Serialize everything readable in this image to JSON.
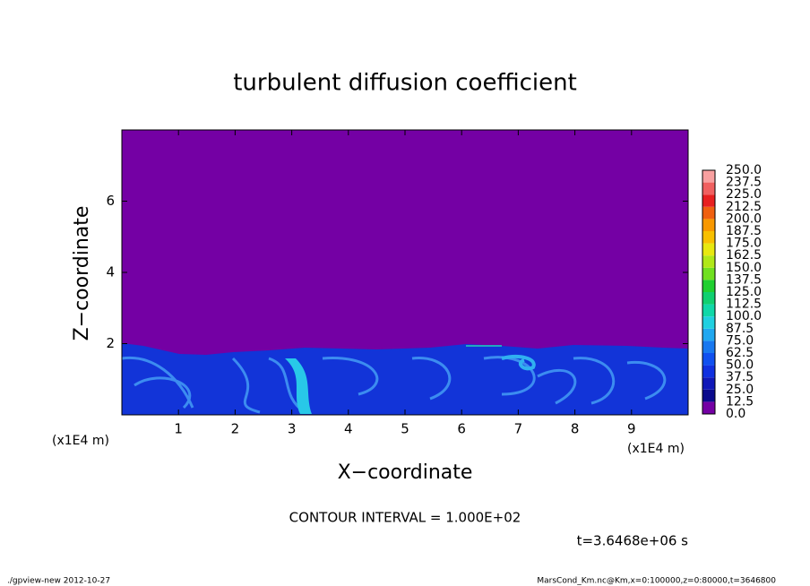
{
  "chart_data": {
    "type": "contour",
    "title": "turbulent diffusion coefficient",
    "x_label": "X−coordinate",
    "y_label": "Z−coordinate",
    "x_unit": "(x1E4 m)",
    "y_unit": "(x1E4 m)",
    "xlim": [
      0,
      10
    ],
    "ylim": [
      0,
      8
    ],
    "xticks": [
      1,
      2,
      3,
      4,
      5,
      6,
      7,
      8,
      9
    ],
    "yticks": [
      2,
      4,
      6
    ],
    "levels": [
      {
        "value": 0,
        "label": "0.0"
      },
      {
        "value": 12.5,
        "label": "12.5"
      },
      {
        "value": 25,
        "label": "25.0"
      },
      {
        "value": 37.5,
        "label": "37.5"
      },
      {
        "value": 50,
        "label": "50.0"
      },
      {
        "value": 62.5,
        "label": "62.5"
      },
      {
        "value": 75,
        "label": "75.0"
      },
      {
        "value": 87.5,
        "label": "87.5"
      },
      {
        "value": 100,
        "label": "100.0"
      },
      {
        "value": 112.5,
        "label": "112.5"
      },
      {
        "value": 125,
        "label": "125.0"
      },
      {
        "value": 137.5,
        "label": "137.5"
      },
      {
        "value": 150,
        "label": "150.0"
      },
      {
        "value": 162.5,
        "label": "162.5"
      },
      {
        "value": 175,
        "label": "175.0"
      },
      {
        "value": 187.5,
        "label": "187.5"
      },
      {
        "value": 200,
        "label": "200.0"
      },
      {
        "value": 212.5,
        "label": "212.5"
      },
      {
        "value": 225,
        "label": "225.0"
      },
      {
        "value": 237.5,
        "label": "237.5"
      },
      {
        "value": 250,
        "label": "250.0"
      }
    ],
    "level_colors": [
      "#7400a4",
      "#0a0a8c",
      "#1018b8",
      "#1030e0",
      "#1050f0",
      "#1878f0",
      "#20a8f0",
      "#20d0e0",
      "#10d8a8",
      "#10d070",
      "#20d030",
      "#70e020",
      "#b0e818",
      "#e8e810",
      "#f8c000",
      "#f89800",
      "#f06010",
      "#e82020",
      "#f06060",
      "#f8a0a0"
    ],
    "contour_interval": "CONTOUR INTERVAL = 1.000E+02",
    "time_label": "t=3.6468e+06 s",
    "footer_left": "./gpview-new  2012-10-27",
    "footer_right": "MarsCond_Km.nc@Km,x=0:100000,z=0:80000,t=3646800"
  }
}
